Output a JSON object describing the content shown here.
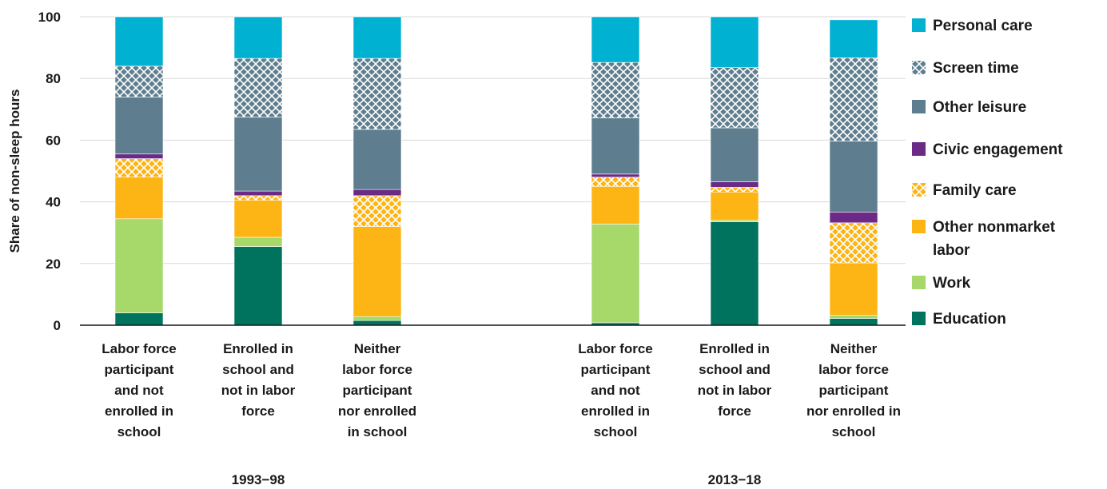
{
  "chart_data": {
    "type": "bar",
    "stacked": true,
    "ylabel": "Share of non-sleep hours",
    "ylim": [
      0,
      100
    ],
    "yticks": [
      0,
      20,
      40,
      60,
      80,
      100
    ],
    "grid": true,
    "legend_position": "right",
    "groups": [
      {
        "label": "1993−98",
        "categories": [
          {
            "lines": [
              "Labor force",
              "participant",
              "and not",
              "enrolled in",
              "school"
            ]
          },
          {
            "lines": [
              "Enrolled in",
              "school and",
              "not in labor",
              "force"
            ]
          },
          {
            "lines": [
              "Neither",
              "labor force",
              "participant",
              "nor enrolled",
              "in school"
            ]
          }
        ]
      },
      {
        "label": "2013−18",
        "categories": [
          {
            "lines": [
              "Labor force",
              "participant",
              "and not",
              "enrolled in",
              "school"
            ]
          },
          {
            "lines": [
              "Enrolled in",
              "school and",
              "not in labor",
              "force"
            ]
          },
          {
            "lines": [
              "Neither",
              "labor force",
              "participant",
              "nor enrolled in",
              "school"
            ]
          }
        ]
      }
    ],
    "series": [
      {
        "name": "Education",
        "color": "#00735f",
        "pattern": "solid",
        "values": [
          4,
          25.5,
          1.5,
          0.8,
          33.5,
          2.2
        ]
      },
      {
        "name": "Work",
        "color": "#a6d86a",
        "pattern": "solid",
        "values": [
          30.5,
          3,
          1.3,
          32,
          0.5,
          1
        ]
      },
      {
        "name": "Other nonmarket labor",
        "legend_lines": [
          "Other nonmarket",
          "labor"
        ],
        "color": "#fdb515",
        "pattern": "solid",
        "values": [
          13.5,
          12,
          29.2,
          12.2,
          9.2,
          17
        ]
      },
      {
        "name": "Family care",
        "color": "#fdb515",
        "pattern": "lattice",
        "values": [
          6,
          1.5,
          10,
          3,
          1.5,
          13
        ]
      },
      {
        "name": "Civic engagement",
        "color": "#6b2a86",
        "pattern": "solid",
        "values": [
          1.5,
          1.5,
          2,
          1,
          1.8,
          3.5
        ]
      },
      {
        "name": "Other leisure",
        "color": "#5e7e8f",
        "pattern": "solid",
        "values": [
          18.5,
          24,
          19.5,
          18.2,
          17.5,
          23
        ]
      },
      {
        "name": "Screen time",
        "color": "#5e7e8f",
        "pattern": "lattice",
        "values": [
          10,
          19,
          23,
          18,
          19.5,
          27
        ]
      },
      {
        "name": "Personal care",
        "color": "#00b1d1",
        "pattern": "solid",
        "values": [
          16,
          13.5,
          13.5,
          14.8,
          16.5,
          12.3
        ]
      }
    ]
  }
}
